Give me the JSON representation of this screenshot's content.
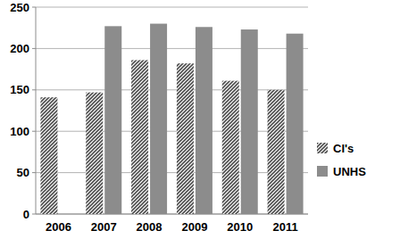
{
  "chart_data": {
    "type": "bar",
    "categories": [
      "2006",
      "2007",
      "2008",
      "2009",
      "2010",
      "2011"
    ],
    "series": [
      {
        "name": "CI's",
        "color": "#4d4d4d",
        "values": [
          141,
          147,
          186,
          182,
          161,
          150
        ]
      },
      {
        "name": "UNHS",
        "color": "#8c8c8c",
        "values": [
          null,
          227,
          230,
          226,
          223,
          218
        ]
      }
    ],
    "ylim": [
      0,
      250
    ],
    "yticks": [
      0,
      50,
      100,
      150,
      200,
      250
    ],
    "grid": true,
    "legend": "right"
  }
}
